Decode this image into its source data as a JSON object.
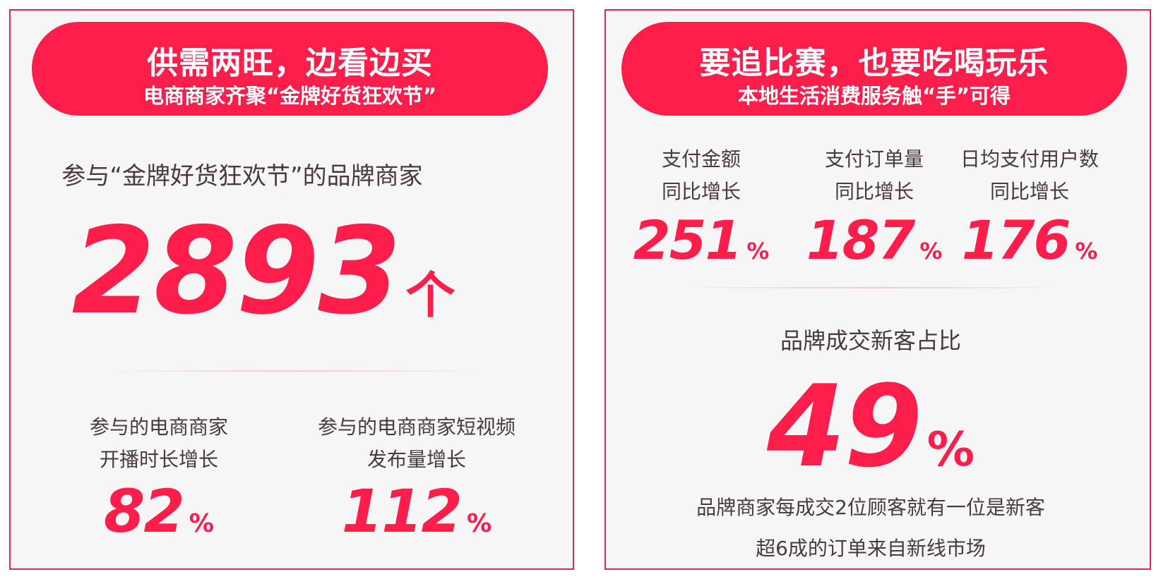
{
  "left": {
    "banner": {
      "line1": "供需两旺，边看边买",
      "line2": "电商商家齐聚“金牌好货狂欢节”"
    },
    "headline_label": "参与“金牌好货狂欢节”的品牌商家",
    "headline_value": "2893",
    "headline_unit": "个",
    "stats": [
      {
        "line1": "参与的电商商家",
        "line2": "开播时长增长",
        "value": "82",
        "unit": "%"
      },
      {
        "line1": "参与的电商商家短视频",
        "line2": "发布量增长",
        "value": "112",
        "unit": "%"
      }
    ]
  },
  "right": {
    "banner": {
      "line1": "要追比赛，也要吃喝玩乐",
      "line2": "本地生活消费服务触“手”可得"
    },
    "stats": [
      {
        "line1": "支付金额",
        "line2": "同比增长",
        "value": "251",
        "unit": "%"
      },
      {
        "line1": "支付订单量",
        "line2": "同比增长",
        "value": "187",
        "unit": "%"
      },
      {
        "line1": "日均支付用户数",
        "line2": "同比增长",
        "value": "176",
        "unit": "%"
      }
    ],
    "headline_label": "品牌成交新客占比",
    "headline_value": "49",
    "headline_unit": "%",
    "notes": [
      "品牌商家每成交2位顾客就有一位是新客",
      "超6成的订单来自新线市场"
    ]
  },
  "colors": {
    "accent": "#fe1e4b",
    "border": "#e0284e",
    "text": "#4a3a3e",
    "background": "#f7f6f6"
  }
}
